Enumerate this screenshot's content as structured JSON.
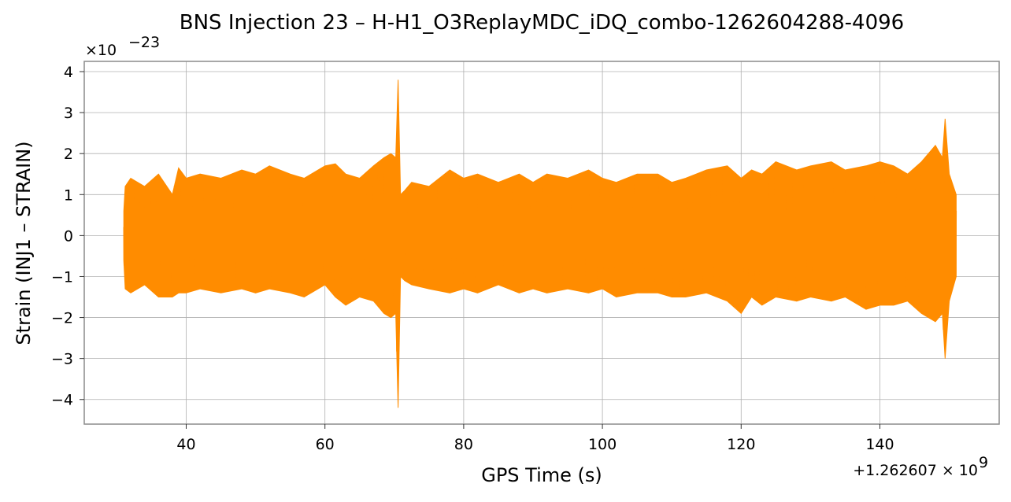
{
  "chart_data": {
    "type": "line",
    "title": "BNS Injection 23 – H-H1_O3ReplayMDC_iDQ_combo-1262604288-4096",
    "xlabel": "GPS Time (s)",
    "ylabel": "Strain (INJ1 – STRAIN)",
    "x_offset_text": "+1.262607 × 10",
    "x_offset_exp": "9",
    "y_scale_text": "×10",
    "y_scale_exp": "−23",
    "x_offset_value": 1262607000,
    "y_scale_value": 1e-23,
    "xlim": [
      25.3,
      157.2
    ],
    "ylim": [
      -4.6,
      4.25
    ],
    "xticks": [
      40,
      60,
      80,
      100,
      120,
      140
    ],
    "yticks": [
      -4,
      -3,
      -2,
      -1,
      0,
      1,
      2,
      3,
      4
    ],
    "xtick_labels": [
      "40",
      "60",
      "80",
      "100",
      "120",
      "140"
    ],
    "ytick_labels": [
      "−4",
      "−3",
      "−2",
      "−1",
      "0",
      "1",
      "2",
      "3",
      "4"
    ],
    "grid": true,
    "line_color": "#ff8c00",
    "series": [
      {
        "name": "",
        "x": [
          31.0,
          31.2,
          32.0,
          34.0,
          36.0,
          38.0,
          38.9,
          40.0,
          42.0,
          45.0,
          48.0,
          50.0,
          52.0,
          55.0,
          57.0,
          60.0,
          61.5,
          63.0,
          65.0,
          67.0,
          68.5,
          69.5,
          70.2,
          70.55,
          70.9,
          71.5,
          72.5,
          75.0,
          78.0,
          80.0,
          82.0,
          85.0,
          88.0,
          90.0,
          92.0,
          95.0,
          98.0,
          100.0,
          102.0,
          105.0,
          108.0,
          110.0,
          112.0,
          115.0,
          118.0,
          120.0,
          121.5,
          123.0,
          125.0,
          128.0,
          130.0,
          133.0,
          135.0,
          138.0,
          140.0,
          142.0,
          144.0,
          146.0,
          148.0,
          149.0,
          149.4,
          150.0,
          151.0
        ],
        "upper": [
          0.6,
          1.2,
          1.4,
          1.2,
          1.5,
          1.0,
          1.65,
          1.4,
          1.5,
          1.4,
          1.6,
          1.5,
          1.7,
          1.5,
          1.4,
          1.7,
          1.75,
          1.5,
          1.4,
          1.7,
          1.9,
          2.0,
          1.9,
          3.8,
          1.0,
          1.1,
          1.3,
          1.2,
          1.6,
          1.4,
          1.5,
          1.3,
          1.5,
          1.3,
          1.5,
          1.4,
          1.6,
          1.4,
          1.3,
          1.5,
          1.5,
          1.3,
          1.4,
          1.6,
          1.7,
          1.4,
          1.6,
          1.5,
          1.8,
          1.6,
          1.7,
          1.8,
          1.6,
          1.7,
          1.8,
          1.7,
          1.5,
          1.8,
          2.2,
          1.9,
          2.85,
          1.5,
          1.0
        ],
        "lower": [
          -0.6,
          -1.3,
          -1.4,
          -1.2,
          -1.5,
          -1.5,
          -1.4,
          -1.4,
          -1.3,
          -1.4,
          -1.3,
          -1.4,
          -1.3,
          -1.4,
          -1.5,
          -1.2,
          -1.5,
          -1.7,
          -1.5,
          -1.6,
          -1.9,
          -2.0,
          -1.9,
          -4.2,
          -1.0,
          -1.1,
          -1.2,
          -1.3,
          -1.4,
          -1.3,
          -1.4,
          -1.2,
          -1.4,
          -1.3,
          -1.4,
          -1.3,
          -1.4,
          -1.3,
          -1.5,
          -1.4,
          -1.4,
          -1.5,
          -1.5,
          -1.4,
          -1.6,
          -1.9,
          -1.5,
          -1.7,
          -1.5,
          -1.6,
          -1.5,
          -1.6,
          -1.5,
          -1.8,
          -1.7,
          -1.7,
          -1.6,
          -1.9,
          -2.1,
          -1.9,
          -3.0,
          -1.6,
          -1.0
        ]
      }
    ]
  }
}
